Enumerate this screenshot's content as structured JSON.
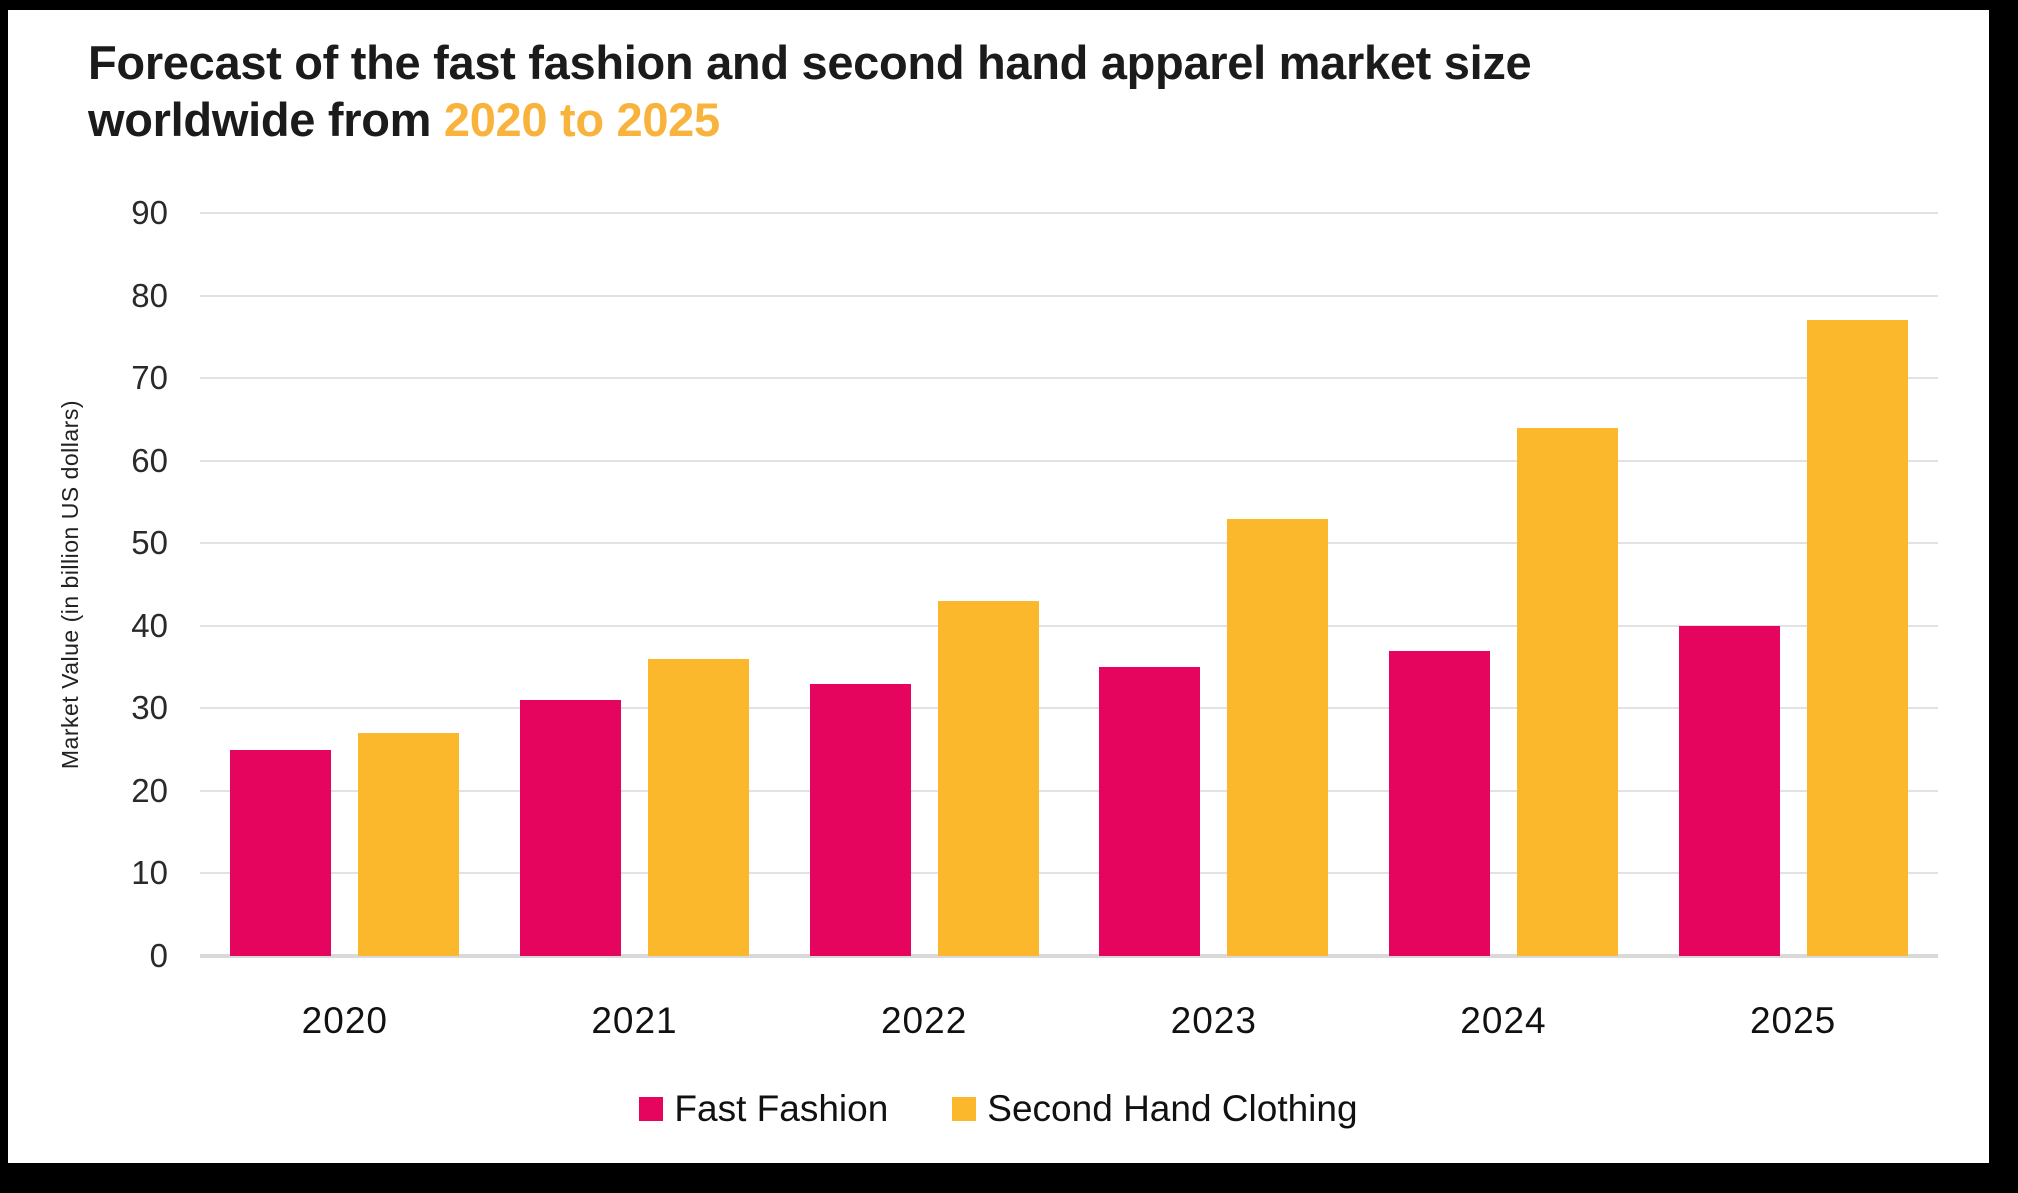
{
  "frame": {
    "background": "#000000",
    "card_background": "#FFFFFF"
  },
  "title": {
    "line1": "Forecast of the fast fashion and second hand apparel market size",
    "line2_prefix": "worldwide from ",
    "line2_highlight": "2020 to 2025",
    "text_color": "#1B1B1B",
    "highlight_color": "#F8B33C"
  },
  "chart_data": {
    "type": "bar",
    "title": "Forecast of the fast fashion and second hand apparel market size worldwide from 2020 to 2025",
    "categories": [
      "2020",
      "2021",
      "2022",
      "2023",
      "2024",
      "2025"
    ],
    "series": [
      {
        "name": "Fast Fashion",
        "color": "#E5045E",
        "values": [
          25,
          31,
          33,
          35,
          37,
          40
        ]
      },
      {
        "name": "Second Hand Clothing",
        "color": "#FBB82D",
        "values": [
          27,
          36,
          43,
          53,
          64,
          77
        ]
      }
    ],
    "xlabel": "",
    "ylabel": "Market Value (in billion US dollars)",
    "ylim": [
      0,
      90
    ],
    "yticks": [
      0,
      10,
      20,
      30,
      40,
      50,
      60,
      70,
      80,
      90
    ],
    "grid": true,
    "gridline_color": "#E2E2E2",
    "axisline_color": "#D9D9D9",
    "legend_position": "bottom"
  }
}
